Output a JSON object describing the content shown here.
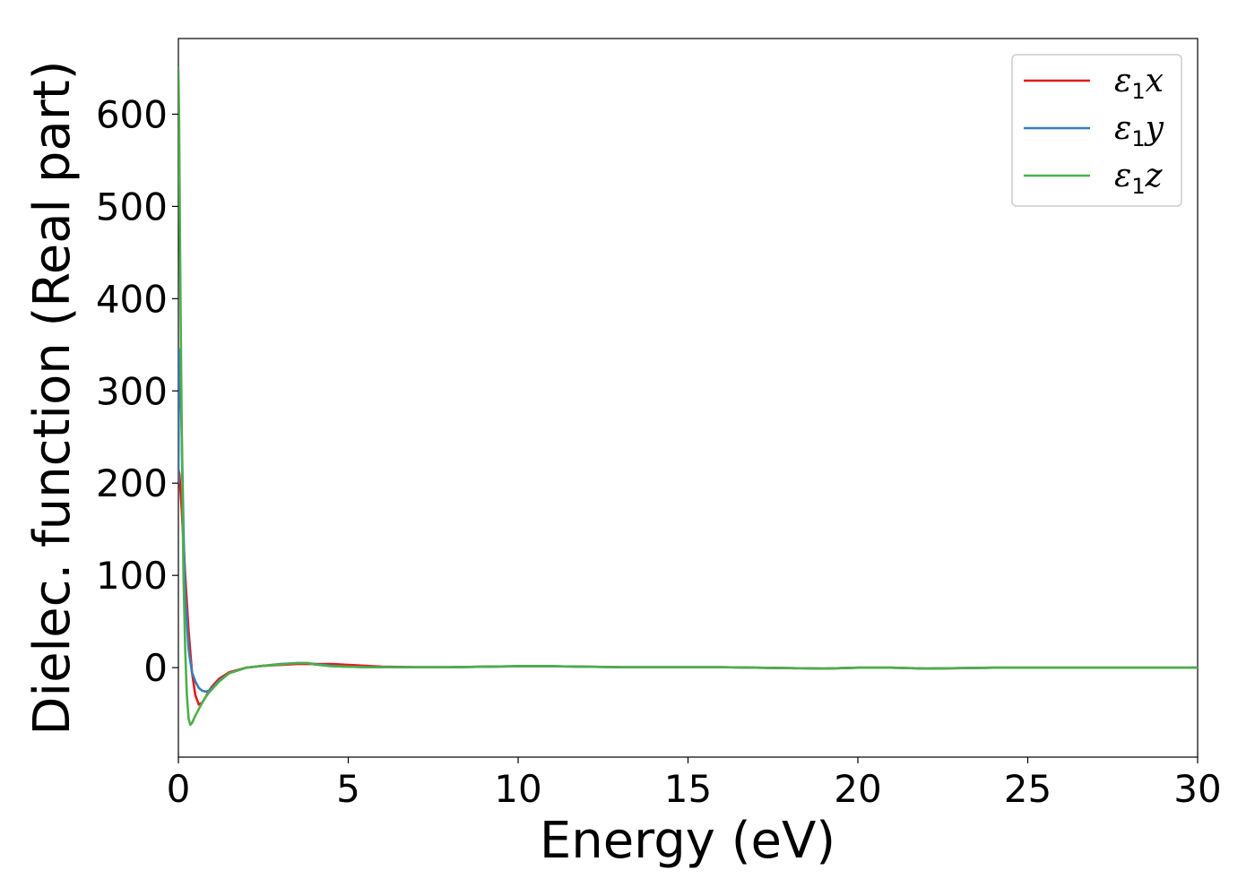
{
  "chart_data": {
    "type": "line",
    "xlabel": "Energy (eV)",
    "ylabel": "Dielec. function (Real part)",
    "xlim": [
      0,
      30
    ],
    "ylim": [
      -97,
      682
    ],
    "xticks": [
      0,
      5,
      10,
      15,
      20,
      25,
      30
    ],
    "yticks": [
      0,
      100,
      200,
      300,
      400,
      500,
      600
    ],
    "grid": false,
    "legend_position": "top-right",
    "series": [
      {
        "name": "ε1x",
        "legend_main": "ε",
        "legend_sub": "1",
        "legend_suffix": "x",
        "color": "#e41a1c",
        "x": [
          0.0,
          0.03,
          0.1,
          0.2,
          0.3,
          0.4,
          0.5,
          0.6,
          0.7,
          0.8,
          0.9,
          1.0,
          1.2,
          1.5,
          2.0,
          2.5,
          3.0,
          3.5,
          4.0,
          4.5,
          5.0,
          5.5,
          6.0,
          7.0,
          8.0,
          9.0,
          10.0,
          11.0,
          12.0,
          13.0,
          14.0,
          15.0,
          16.0,
          17.0,
          18.0,
          19.0,
          20.0,
          21.0,
          22.0,
          23.0,
          24.0,
          25.0,
          26.0,
          27.0,
          28.0,
          29.0,
          30.0
        ],
        "y": [
          215,
          210,
          170,
          100,
          40,
          -5,
          -30,
          -40,
          -38,
          -32,
          -25,
          -20,
          -12,
          -5,
          0,
          2,
          3,
          4,
          4,
          4,
          3,
          2,
          1,
          0.5,
          0.5,
          1,
          1.5,
          1.5,
          1,
          0.5,
          0.5,
          0.5,
          0.5,
          0,
          -0.5,
          -1,
          0,
          0,
          -1,
          -0.5,
          0,
          0,
          0,
          0,
          0,
          0,
          0
        ]
      },
      {
        "name": "ε1y",
        "legend_main": "ε",
        "legend_sub": "1",
        "legend_suffix": "y",
        "color": "#377eb8",
        "x": [
          0.0,
          0.02,
          0.05,
          0.1,
          0.15,
          0.2,
          0.3,
          0.4,
          0.5,
          0.6,
          0.7,
          0.8,
          0.9,
          1.0,
          1.2,
          1.5,
          2.0,
          2.5,
          3.0,
          3.5,
          3.8,
          4.0,
          4.5,
          5.0,
          5.5,
          6.0,
          7.0,
          8.0,
          9.0,
          10.0,
          11.0,
          12.0,
          13.0,
          14.0,
          15.0,
          16.0,
          17.0,
          18.0,
          19.0,
          20.0,
          21.0,
          22.0,
          23.0,
          24.0,
          25.0,
          26.0,
          27.0,
          28.0,
          29.0,
          30.0
        ],
        "y": [
          200,
          345,
          330,
          250,
          150,
          80,
          20,
          -5,
          -15,
          -22,
          -25,
          -26,
          -25,
          -22,
          -14,
          -6,
          0,
          2,
          4,
          5,
          5,
          4,
          2,
          1,
          0.5,
          0.5,
          0.5,
          0.5,
          1,
          1.5,
          1.5,
          1,
          0.5,
          0.5,
          0.5,
          0.5,
          0,
          -0.5,
          -1,
          0,
          0,
          -1,
          -0.5,
          0,
          0,
          0,
          0,
          0,
          0,
          0
        ]
      },
      {
        "name": "ε1z",
        "legend_main": "ε",
        "legend_sub": "1",
        "legend_suffix": "z",
        "color": "#4daf4a",
        "x": [
          0.0,
          0.02,
          0.05,
          0.1,
          0.15,
          0.2,
          0.25,
          0.3,
          0.35,
          0.4,
          0.5,
          0.6,
          0.7,
          0.8,
          0.9,
          1.0,
          1.2,
          1.5,
          2.0,
          2.5,
          3.0,
          3.5,
          3.8,
          4.0,
          4.5,
          5.0,
          5.5,
          6.0,
          7.0,
          8.0,
          9.0,
          10.0,
          11.0,
          12.0,
          13.0,
          14.0,
          15.0,
          16.0,
          17.0,
          18.0,
          19.0,
          20.0,
          21.0,
          22.0,
          23.0,
          24.0,
          25.0,
          26.0,
          27.0,
          28.0,
          29.0,
          30.0
        ],
        "y": [
          650,
          600,
          450,
          250,
          100,
          20,
          -30,
          -55,
          -62,
          -60,
          -52,
          -45,
          -38,
          -32,
          -27,
          -23,
          -15,
          -6,
          0,
          2,
          3.5,
          5,
          5,
          3.5,
          1.5,
          1,
          0.5,
          0.5,
          0.5,
          0.5,
          1,
          1.5,
          1.5,
          1,
          0.5,
          0.5,
          0.5,
          0.5,
          0,
          -0.5,
          -1,
          0,
          0,
          -1,
          -0.5,
          0,
          0,
          0,
          0,
          0,
          0,
          0
        ]
      }
    ]
  }
}
